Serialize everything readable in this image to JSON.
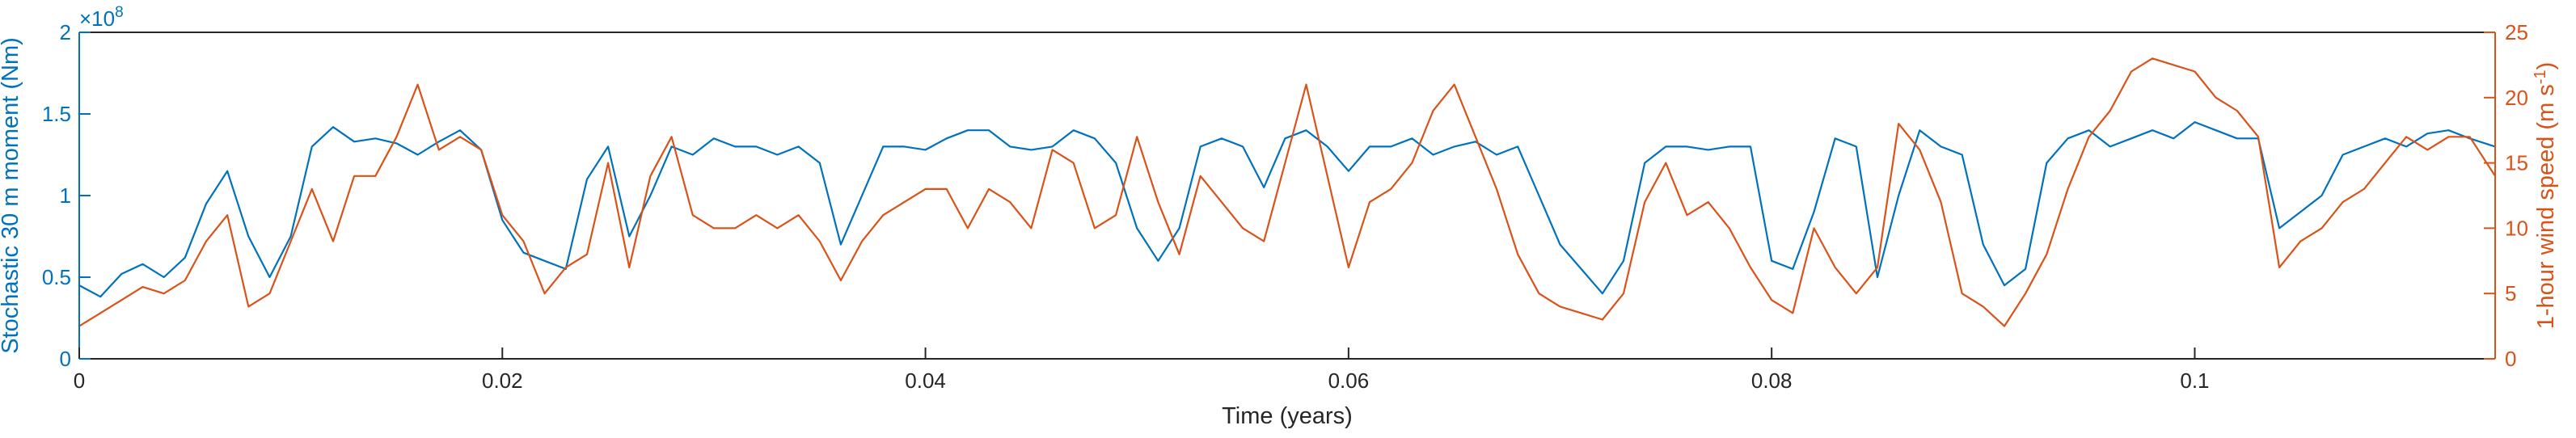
{
  "chart_data": {
    "type": "line",
    "xlabel": "Time (years)",
    "ylabel_left": "Stochastic 30 m moment (Nm)",
    "ylabel_right": "1-hour wind speed (m s",
    "ylabel_right_sup": "-1",
    "ylabel_right_suffix": ")",
    "left_exponent_base": "×10",
    "left_exponent_power": "8",
    "xlim": [
      0,
      0.1142
    ],
    "ylim_left": [
      0,
      2
    ],
    "ylim_right": [
      0,
      25
    ],
    "xticks": [
      {
        "value": 0,
        "label": "0"
      },
      {
        "value": 0.02,
        "label": "0.02"
      },
      {
        "value": 0.04,
        "label": "0.04"
      },
      {
        "value": 0.06,
        "label": "0.06"
      },
      {
        "value": 0.08,
        "label": "0.08"
      },
      {
        "value": 0.1,
        "label": "0.1"
      }
    ],
    "yticks_left": [
      {
        "value": 0,
        "label": "0"
      },
      {
        "value": 0.5,
        "label": "0.5"
      },
      {
        "value": 1,
        "label": "1"
      },
      {
        "value": 1.5,
        "label": "1.5"
      },
      {
        "value": 2,
        "label": "2"
      }
    ],
    "yticks_right": [
      {
        "value": 0,
        "label": "0"
      },
      {
        "value": 5,
        "label": "5"
      },
      {
        "value": 10,
        "label": "10"
      },
      {
        "value": 15,
        "label": "15"
      },
      {
        "value": 20,
        "label": "20"
      },
      {
        "value": 25,
        "label": "25"
      }
    ],
    "grid": false,
    "legend": "none",
    "series": [
      {
        "axis": "left",
        "color": "#0072BD",
        "x": [
          0,
          0.001,
          0.002,
          0.003,
          0.004,
          0.005,
          0.006,
          0.007,
          0.008,
          0.009,
          0.01,
          0.011,
          0.012,
          0.013,
          0.014,
          0.015,
          0.016,
          0.017,
          0.018,
          0.019,
          0.02,
          0.021,
          0.022,
          0.023,
          0.024,
          0.025,
          0.026,
          0.027,
          0.028,
          0.029,
          0.03,
          0.031,
          0.032,
          0.033,
          0.034,
          0.035,
          0.036,
          0.037,
          0.038,
          0.039,
          0.04,
          0.041,
          0.042,
          0.043,
          0.044,
          0.045,
          0.046,
          0.047,
          0.048,
          0.049,
          0.05,
          0.051,
          0.052,
          0.053,
          0.054,
          0.055,
          0.056,
          0.057,
          0.058,
          0.059,
          0.06,
          0.061,
          0.062,
          0.063,
          0.064,
          0.065,
          0.066,
          0.067,
          0.068,
          0.069,
          0.07,
          0.071,
          0.072,
          0.073,
          0.074,
          0.075,
          0.076,
          0.077,
          0.078,
          0.079,
          0.08,
          0.081,
          0.082,
          0.083,
          0.084,
          0.085,
          0.086,
          0.087,
          0.088,
          0.089,
          0.09,
          0.091,
          0.092,
          0.093,
          0.094,
          0.095,
          0.096,
          0.097,
          0.098,
          0.099,
          0.1,
          0.101,
          0.102,
          0.103,
          0.104,
          0.105,
          0.106,
          0.107,
          0.108,
          0.109,
          0.11,
          0.111,
          0.112,
          0.113,
          0.1142
        ],
        "y": [
          0.45,
          0.38,
          0.52,
          0.58,
          0.5,
          0.62,
          0.95,
          1.15,
          0.75,
          0.5,
          0.75,
          1.3,
          1.42,
          1.33,
          1.35,
          1.32,
          1.25,
          1.33,
          1.4,
          1.28,
          0.85,
          0.65,
          0.6,
          0.55,
          1.1,
          1.3,
          0.75,
          1.0,
          1.3,
          1.25,
          1.35,
          1.3,
          1.3,
          1.25,
          1.3,
          1.2,
          0.7,
          1.0,
          1.3,
          1.3,
          1.28,
          1.35,
          1.4,
          1.4,
          1.3,
          1.28,
          1.3,
          1.4,
          1.35,
          1.2,
          0.8,
          0.6,
          0.8,
          1.3,
          1.35,
          1.3,
          1.05,
          1.35,
          1.4,
          1.3,
          1.15,
          1.3,
          1.3,
          1.35,
          1.25,
          1.3,
          1.33,
          1.25,
          1.3,
          1.0,
          0.7,
          0.55,
          0.4,
          0.6,
          1.2,
          1.3,
          1.3,
          1.28,
          1.3,
          1.3,
          0.6,
          0.55,
          0.9,
          1.35,
          1.3,
          0.5,
          1.0,
          1.4,
          1.3,
          1.25,
          0.7,
          0.45,
          0.55,
          1.2,
          1.35,
          1.4,
          1.3,
          1.35,
          1.4,
          1.35,
          1.45,
          1.4,
          1.35,
          1.35,
          0.8,
          0.9,
          1.0,
          1.25,
          1.3,
          1.35,
          1.3,
          1.38,
          1.4,
          1.35,
          1.3
        ]
      },
      {
        "axis": "right",
        "color": "#D95319",
        "x": [
          0,
          0.001,
          0.002,
          0.003,
          0.004,
          0.005,
          0.006,
          0.007,
          0.008,
          0.009,
          0.01,
          0.011,
          0.012,
          0.013,
          0.014,
          0.015,
          0.016,
          0.017,
          0.018,
          0.019,
          0.02,
          0.021,
          0.022,
          0.023,
          0.024,
          0.025,
          0.026,
          0.027,
          0.028,
          0.029,
          0.03,
          0.031,
          0.032,
          0.033,
          0.034,
          0.035,
          0.036,
          0.037,
          0.038,
          0.039,
          0.04,
          0.041,
          0.042,
          0.043,
          0.044,
          0.045,
          0.046,
          0.047,
          0.048,
          0.049,
          0.05,
          0.051,
          0.052,
          0.053,
          0.054,
          0.055,
          0.056,
          0.057,
          0.058,
          0.059,
          0.06,
          0.061,
          0.062,
          0.063,
          0.064,
          0.065,
          0.066,
          0.067,
          0.068,
          0.069,
          0.07,
          0.071,
          0.072,
          0.073,
          0.074,
          0.075,
          0.076,
          0.077,
          0.078,
          0.079,
          0.08,
          0.081,
          0.082,
          0.083,
          0.084,
          0.085,
          0.086,
          0.087,
          0.088,
          0.089,
          0.09,
          0.091,
          0.092,
          0.093,
          0.094,
          0.095,
          0.096,
          0.097,
          0.098,
          0.099,
          0.1,
          0.101,
          0.102,
          0.103,
          0.104,
          0.105,
          0.106,
          0.107,
          0.108,
          0.109,
          0.11,
          0.111,
          0.112,
          0.113,
          0.1142
        ],
        "y": [
          2.5,
          3.5,
          4.5,
          5.5,
          5.0,
          6.0,
          9.0,
          11.0,
          4.0,
          5.0,
          9.0,
          13.0,
          9.0,
          14.0,
          14.0,
          17.0,
          21.0,
          16.0,
          17.0,
          16.0,
          11.0,
          9.0,
          5.0,
          7.0,
          8.0,
          15.0,
          7.0,
          14.0,
          17.0,
          11.0,
          10.0,
          10.0,
          11.0,
          10.0,
          11.0,
          9.0,
          6.0,
          9.0,
          11.0,
          12.0,
          13.0,
          13.0,
          10.0,
          13.0,
          12.0,
          10.0,
          16.0,
          15.0,
          10.0,
          11.0,
          17.0,
          12.0,
          8.0,
          14.0,
          12.0,
          10.0,
          9.0,
          15.0,
          21.0,
          14.0,
          7.0,
          12.0,
          13.0,
          15.0,
          19.0,
          21.0,
          17.0,
          13.0,
          8.0,
          5.0,
          4.0,
          3.5,
          3.0,
          5.0,
          12.0,
          15.0,
          11.0,
          12.0,
          10.0,
          7.0,
          4.5,
          3.5,
          10.0,
          7.0,
          5.0,
          7.0,
          18.0,
          16.0,
          12.0,
          5.0,
          4.0,
          2.5,
          5.0,
          8.0,
          13.0,
          17.0,
          19.0,
          22.0,
          23.0,
          22.5,
          22.0,
          20.0,
          19.0,
          17.0,
          7.0,
          9.0,
          10.0,
          12.0,
          13.0,
          15.0,
          17.0,
          16.0,
          17.0,
          17.0,
          14.0
        ]
      }
    ]
  }
}
